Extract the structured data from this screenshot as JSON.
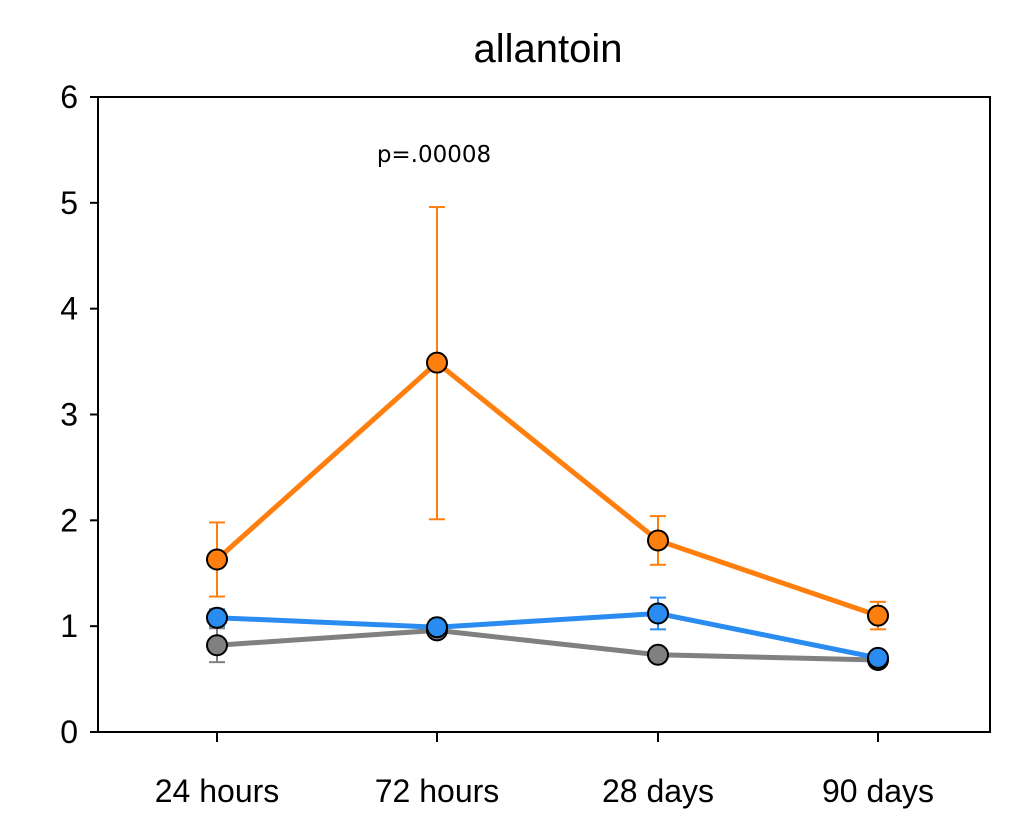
{
  "chart_data": {
    "type": "line",
    "title": "allantoin",
    "xlabel": "",
    "ylabel": "",
    "categories": [
      "24 hours",
      "72 hours",
      "28 days",
      "90 days"
    ],
    "ylim": [
      0,
      6
    ],
    "yticks": [
      "0",
      "1",
      "2",
      "3",
      "4",
      "5",
      "6"
    ],
    "grid": false,
    "legend": "none",
    "annotation": "p=.00008",
    "series": [
      {
        "color": "#ff7f0e",
        "values": [
          1.63,
          3.49,
          1.81,
          1.1
        ],
        "err_low": [
          1.28,
          2.01,
          1.58,
          0.97
        ],
        "err_high": [
          1.98,
          4.96,
          2.04,
          1.23
        ]
      },
      {
        "color": "#2a8cf0",
        "values": [
          1.08,
          0.99,
          1.12,
          0.7
        ],
        "err_low": [
          1.0,
          0.92,
          0.97,
          0.65
        ],
        "err_high": [
          1.16,
          1.06,
          1.27,
          0.75
        ]
      },
      {
        "color": "#808080",
        "values": [
          0.82,
          0.96,
          0.73,
          0.68
        ],
        "err_low": [
          0.66,
          0.9,
          0.68,
          0.64
        ],
        "err_high": [
          0.98,
          1.02,
          0.78,
          0.72
        ]
      }
    ]
  }
}
